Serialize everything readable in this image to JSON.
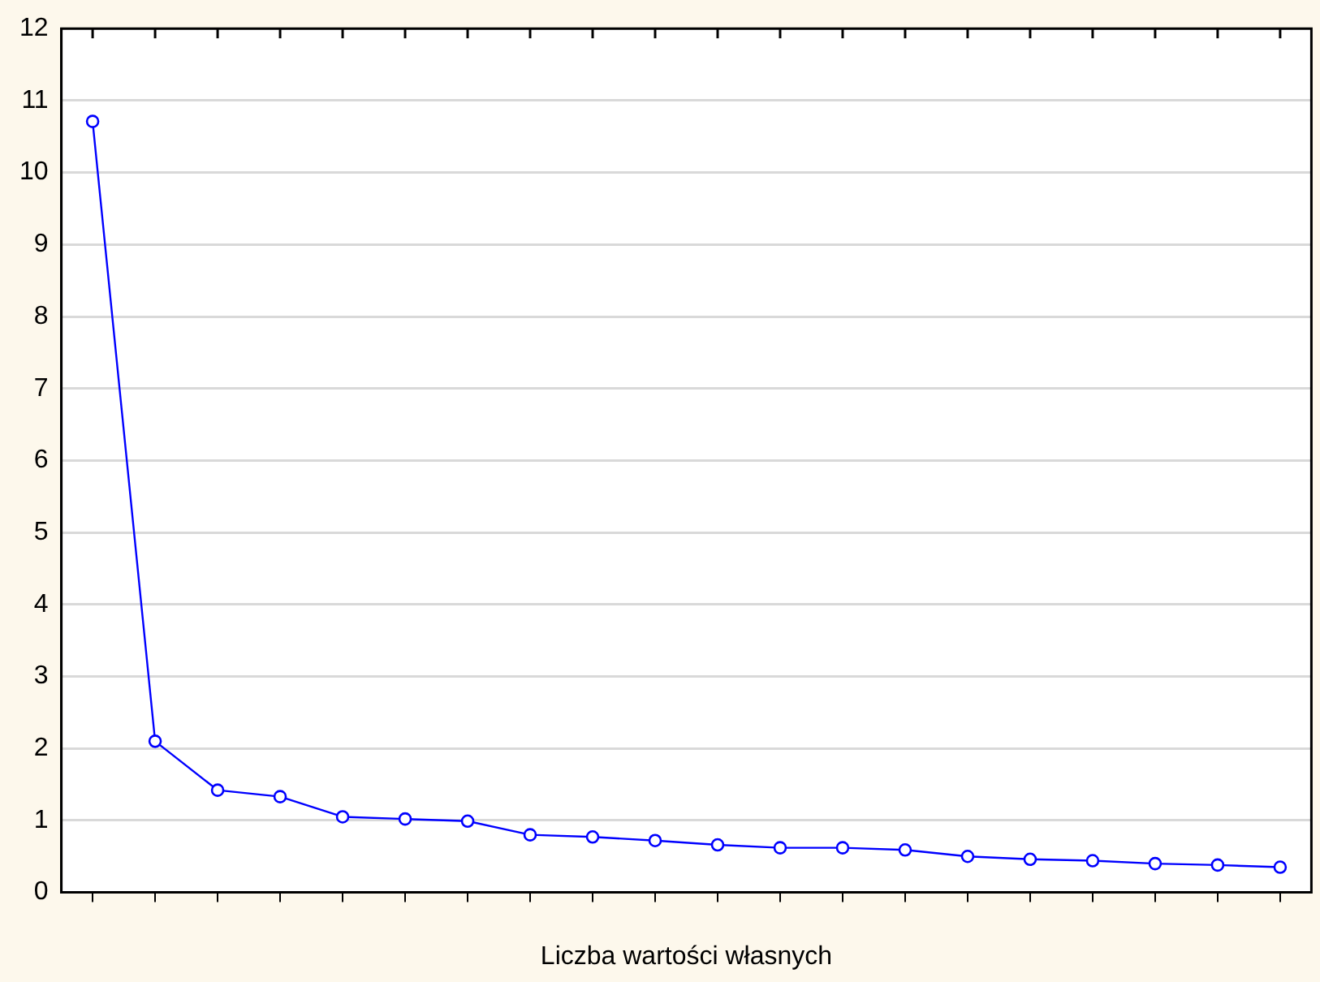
{
  "chart_data": {
    "type": "line",
    "xlabel": "Liczba wartości własnych",
    "categories": [
      null,
      null,
      null,
      null,
      null,
      null,
      null,
      null,
      null,
      null,
      null,
      null,
      null,
      null,
      null,
      null,
      null,
      null,
      null,
      null
    ],
    "series": [
      {
        "color": "#0000ff",
        "values": [
          10.71,
          2.1,
          1.42,
          1.33,
          1.05,
          1.02,
          0.99,
          0.8,
          0.77,
          0.72,
          0.66,
          0.62,
          0.62,
          0.59,
          0.5,
          0.46,
          0.44,
          0.4,
          0.38,
          0.35
        ]
      }
    ],
    "ylim": [
      0,
      12
    ],
    "yticks": [
      0,
      1,
      2,
      3,
      4,
      5,
      6,
      7,
      8,
      9,
      10,
      11,
      12
    ],
    "grid": "y",
    "marker": "circle",
    "line_style": "solid"
  }
}
